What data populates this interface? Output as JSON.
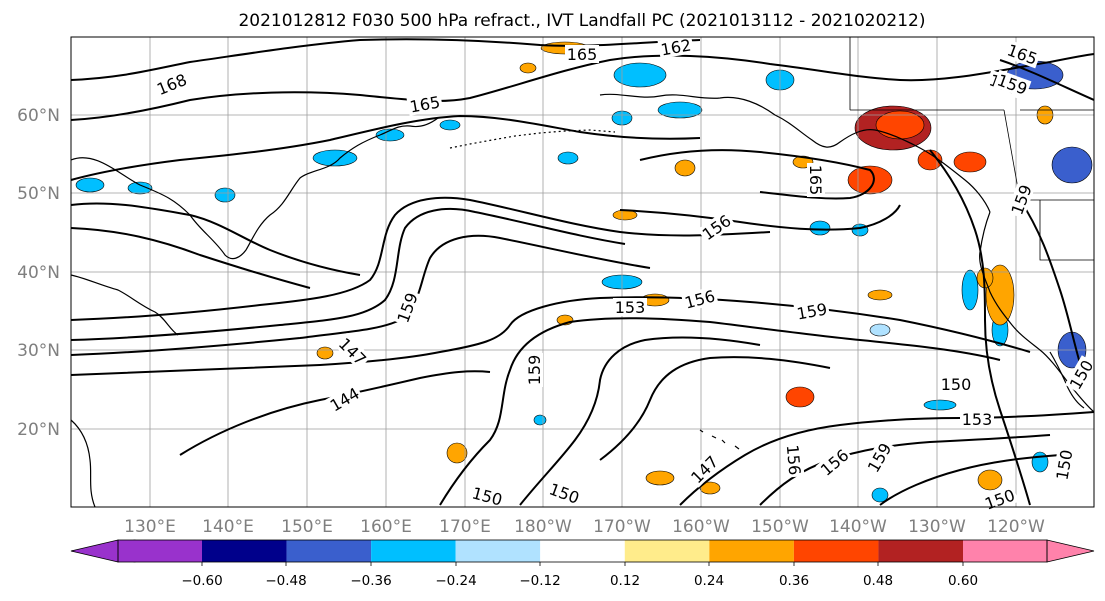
{
  "title": "2021012812 F030 500 hPa refract., IVT Landfall PC (2021013112 - 2021020212)",
  "colors": {
    "land_outline": "#000000",
    "contour": "#000000",
    "grid": "#9e9e9e",
    "tick_label": "#7f7f7f"
  },
  "lon_ticks": [
    "130°E",
    "140°E",
    "150°E",
    "160°E",
    "170°E",
    "180°W",
    "170°W",
    "160°W",
    "150°W",
    "140°W",
    "130°W",
    "120°W"
  ],
  "lat_ticks": [
    "60°N",
    "50°N",
    "40°N",
    "30°N",
    "20°N"
  ],
  "colorbar": {
    "colors": [
      "#9932cc",
      "#00008b",
      "#3a5fcd",
      "#00bfff",
      "#b0e2ff",
      "#ffffff",
      "#ffec8b",
      "#ffa500",
      "#ff4500",
      "#b22222",
      "#ff82ab"
    ],
    "tick_labels": [
      "−0.60",
      "−0.48",
      "−0.36",
      "−0.24",
      "−0.12",
      "0.12",
      "0.24",
      "0.36",
      "0.48",
      "0.60"
    ]
  },
  "contour_labels": [
    "168",
    "165",
    "162",
    "165",
    "165",
    "159",
    "165",
    "156",
    "159",
    "159",
    "153",
    "156",
    "159",
    "159",
    "147",
    "144",
    "159",
    "150",
    "153",
    "150",
    "156",
    "150",
    "156",
    "147",
    "150",
    "150",
    "150",
    "159"
  ],
  "shading": {
    "blue_patches": 24,
    "orange_patches": 22
  }
}
